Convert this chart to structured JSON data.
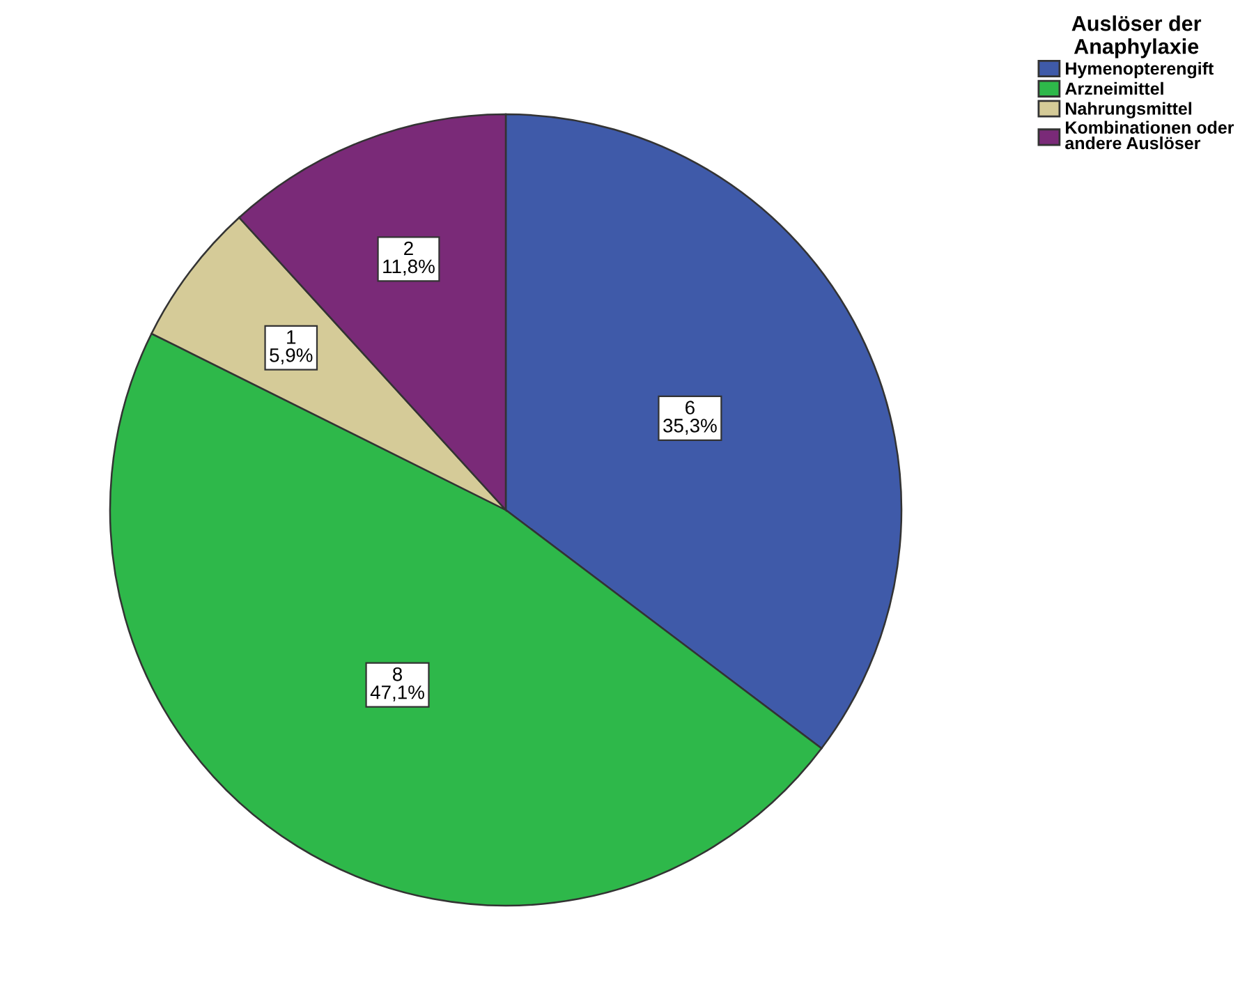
{
  "chart_data": {
    "type": "pie",
    "legend_title": "Auslöser der\nAnaphylaxie",
    "categories": [
      "Hymenopterengift",
      "Arzneimittel",
      "Nahrungsmittel",
      "Kombinationen oder\nandere Auslöser"
    ],
    "values": [
      6,
      8,
      1,
      2
    ],
    "colors": [
      "#3f5aa9",
      "#2eb84a",
      "#d5cb98",
      "#7a2a78"
    ],
    "value_labels": [
      "6\n35,3%",
      "8\n47,1%",
      "1\n5,9%",
      "2\n11,8%"
    ],
    "legend": "top right"
  }
}
